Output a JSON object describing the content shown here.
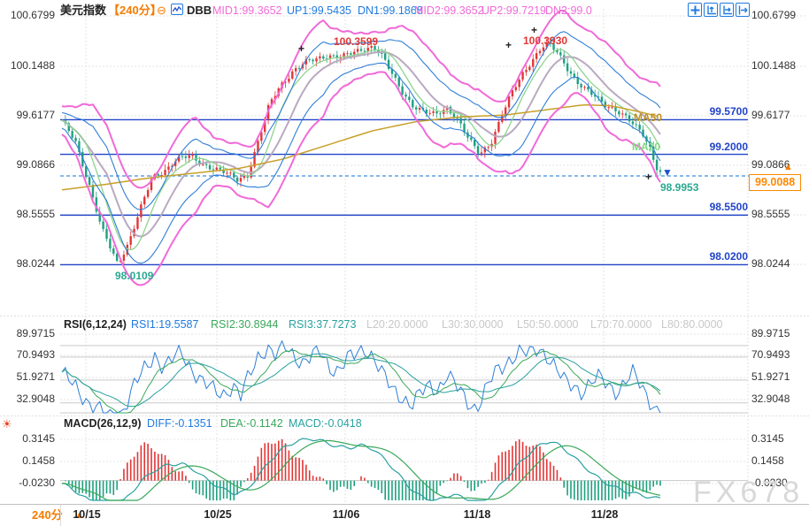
{
  "header": {
    "symbol": "美元指数",
    "period": "【240分】",
    "minus_icon": "⊖",
    "indicator": "DBB",
    "mid1": "MID1:99.3652",
    "up1": "UP1:99.5435",
    "dn1": "DN1:99.1868",
    "mid2": "MID2:99.3652",
    "up2": "UP2:99.7219",
    "dn2": "DN2:99.0"
  },
  "main_chart": {
    "y_axis": [
      "100.6799",
      "100.1488",
      "99.6177",
      "99.0866",
      "98.5555",
      "98.0244"
    ],
    "levels": [
      {
        "label": "99.5700",
        "value": 99.57
      },
      {
        "label": "99.2000",
        "value": 99.2
      },
      {
        "label": "98.5500",
        "value": 98.55
      },
      {
        "label": "98.0200",
        "value": 98.02
      }
    ],
    "current_price": "99.0088",
    "annotations": {
      "peak1": "100.3599",
      "peak2": "100.3930",
      "last": "98.9953",
      "low": "98.0109",
      "ma50": "MA50",
      "ma20": "MA20"
    },
    "markers": {
      "up_arrow": "▲",
      "down_arrow": "▼",
      "cross": "+"
    }
  },
  "rsi": {
    "name": "RSI(6,12,24)",
    "r1": "RSI1:19.5587",
    "r2": "RSI2:30.8944",
    "r3": "RSI3:37.7273",
    "l20": "L20:20.0000",
    "l30": "L30:30.0000",
    "l50": "L50:50.0000",
    "l70": "L70:70.0000",
    "l80": "L80:80.0000",
    "axis": [
      "89.9715",
      "70.9493",
      "51.9271",
      "32.9048"
    ]
  },
  "macd": {
    "name": "MACD(26,12,9)",
    "diff": "DIFF:-0.1351",
    "dea": "DEA:-0.1142",
    "macd": "MACD:-0.0418",
    "axis": [
      "0.3145",
      "0.1458",
      "-0.0230"
    ]
  },
  "time_axis": {
    "period": "240分",
    "arrow": "▲",
    "dates": [
      "10/15",
      "10/25",
      "11/06",
      "11/18",
      "11/28"
    ]
  },
  "watermark": "FX678",
  "sun_icon": "☀",
  "colors": {
    "accent_orange": "#f57c00",
    "band_pink": "#f06ad8",
    "inner_band_blue": "#2f7fd6",
    "level_blue": "#2244c8",
    "up_red": "#e23636",
    "down_green": "#1fa080",
    "rsi_blue": "#2f7fd6",
    "rsi_green": "#3aa85a",
    "rsi_teal": "#2aa0a0",
    "ma50_olive": "#c8a028",
    "ma20_green": "#8fd48f",
    "mid_gray": "#b9a9c0",
    "price_box_orange": "#ff8800",
    "watermark_gray": "#d8d8d8"
  },
  "chart_data": {
    "type": "candlestick",
    "symbol": "美元指数",
    "timeframe": "240分",
    "price_axis_ticks": [
      100.6799,
      100.1488,
      99.6177,
      99.0866,
      98.5555,
      98.0244
    ],
    "time_ticks": [
      "10/15",
      "10/25",
      "11/06",
      "11/18",
      "11/28"
    ],
    "horizontal_levels": [
      99.57,
      99.2,
      98.55,
      98.02
    ],
    "current_price": 99.0088,
    "high1": 100.3599,
    "high2": 100.393,
    "low1": 98.0109,
    "last_low": 98.9953,
    "bollinger": {
      "mid1": 99.3652,
      "up1": 99.5435,
      "dn1": 99.1868,
      "mid2": 99.3652,
      "up2": 99.7219,
      "dn2": 99.0
    },
    "price_path": [
      [
        70,
        99.55
      ],
      [
        85,
        99.35
      ],
      [
        100,
        98.9
      ],
      [
        115,
        98.4
      ],
      [
        133,
        98.03
      ],
      [
        145,
        98.25
      ],
      [
        160,
        98.65
      ],
      [
        172,
        98.95
      ],
      [
        185,
        99.02
      ],
      [
        200,
        99.15
      ],
      [
        215,
        99.18
      ],
      [
        228,
        99.1
      ],
      [
        242,
        99.05
      ],
      [
        255,
        99.0
      ],
      [
        268,
        98.93
      ],
      [
        280,
        98.98
      ],
      [
        292,
        99.35
      ],
      [
        305,
        99.75
      ],
      [
        318,
        99.95
      ],
      [
        332,
        100.1
      ],
      [
        345,
        100.18
      ],
      [
        358,
        100.22
      ],
      [
        372,
        100.26
      ],
      [
        385,
        100.24
      ],
      [
        398,
        100.28
      ],
      [
        412,
        100.33
      ],
      [
        422,
        100.36
      ],
      [
        432,
        100.25
      ],
      [
        443,
        100.05
      ],
      [
        455,
        99.86
      ],
      [
        467,
        99.72
      ],
      [
        480,
        99.65
      ],
      [
        492,
        99.62
      ],
      [
        505,
        99.7
      ],
      [
        517,
        99.58
      ],
      [
        530,
        99.35
      ],
      [
        542,
        99.2
      ],
      [
        555,
        99.33
      ],
      [
        566,
        99.6
      ],
      [
        578,
        99.85
      ],
      [
        590,
        100.05
      ],
      [
        602,
        100.22
      ],
      [
        612,
        100.35
      ],
      [
        620,
        100.38
      ],
      [
        630,
        100.28
      ],
      [
        641,
        100.12
      ],
      [
        652,
        99.98
      ],
      [
        663,
        99.88
      ],
      [
        674,
        99.8
      ],
      [
        685,
        99.72
      ],
      [
        696,
        99.68
      ],
      [
        707,
        99.6
      ],
      [
        717,
        99.5
      ],
      [
        726,
        99.42
      ],
      [
        734,
        99.28
      ],
      [
        741,
        99.08
      ],
      [
        746,
        99.01
      ]
    ],
    "ma50_path": [
      [
        70,
        98.82
      ],
      [
        120,
        98.88
      ],
      [
        170,
        98.95
      ],
      [
        220,
        99.0
      ],
      [
        270,
        99.05
      ],
      [
        320,
        99.15
      ],
      [
        370,
        99.3
      ],
      [
        420,
        99.45
      ],
      [
        470,
        99.55
      ],
      [
        520,
        99.6
      ],
      [
        570,
        99.62
      ],
      [
        620,
        99.68
      ],
      [
        660,
        99.73
      ],
      [
        690,
        99.72
      ],
      [
        720,
        99.66
      ],
      [
        746,
        99.6
      ]
    ],
    "rsi": {
      "params": [
        6,
        12,
        24
      ],
      "rsi1": 19.5587,
      "rsi2": 30.8944,
      "rsi3": 37.7273,
      "levels": [
        20,
        30,
        50,
        70,
        80
      ],
      "axis_ticks": [
        89.9715,
        70.9493,
        51.9271,
        32.9048
      ],
      "path": [
        [
          70,
          55
        ],
        [
          85,
          45
        ],
        [
          100,
          30
        ],
        [
          115,
          22
        ],
        [
          130,
          15
        ],
        [
          140,
          25
        ],
        [
          152,
          45
        ],
        [
          165,
          62
        ],
        [
          175,
          72
        ],
        [
          185,
          60
        ],
        [
          195,
          68
        ],
        [
          205,
          75
        ],
        [
          215,
          62
        ],
        [
          228,
          48
        ],
        [
          240,
          42
        ],
        [
          252,
          38
        ],
        [
          263,
          45
        ],
        [
          272,
          35
        ],
        [
          282,
          55
        ],
        [
          292,
          72
        ],
        [
          302,
          78
        ],
        [
          312,
          70
        ],
        [
          322,
          80
        ],
        [
          332,
          72
        ],
        [
          342,
          65
        ],
        [
          352,
          70
        ],
        [
          362,
          75
        ],
        [
          372,
          62
        ],
        [
          382,
          58
        ],
        [
          392,
          68
        ],
        [
          402,
          72
        ],
        [
          412,
          78
        ],
        [
          422,
          70
        ],
        [
          432,
          55
        ],
        [
          443,
          42
        ],
        [
          455,
          35
        ],
        [
          465,
          28
        ],
        [
          475,
          38
        ],
        [
          485,
          45
        ],
        [
          495,
          42
        ],
        [
          505,
          55
        ],
        [
          515,
          45
        ],
        [
          527,
          32
        ],
        [
          538,
          25
        ],
        [
          548,
          40
        ],
        [
          558,
          55
        ],
        [
          568,
          62
        ],
        [
          578,
          70
        ],
        [
          588,
          75
        ],
        [
          598,
          72
        ],
        [
          608,
          78
        ],
        [
          618,
          72
        ],
        [
          628,
          60
        ],
        [
          638,
          48
        ],
        [
          648,
          45
        ],
        [
          658,
          40
        ],
        [
          668,
          48
        ],
        [
          678,
          52
        ],
        [
          688,
          45
        ],
        [
          698,
          40
        ],
        [
          708,
          50
        ],
        [
          715,
          55
        ],
        [
          722,
          48
        ],
        [
          728,
          40
        ],
        [
          735,
          32
        ],
        [
          741,
          25
        ],
        [
          746,
          18
        ]
      ]
    },
    "macd": {
      "params": [
        26,
        12,
        9
      ],
      "diff": -0.1351,
      "dea": -0.1142,
      "macd": -0.0418,
      "axis_ticks": [
        0.3145,
        0.1458,
        -0.023
      ],
      "diff_path": [
        [
          70,
          -0.02
        ],
        [
          85,
          -0.08
        ],
        [
          100,
          -0.15
        ],
        [
          115,
          -0.2
        ],
        [
          130,
          -0.22
        ],
        [
          145,
          -0.12
        ],
        [
          160,
          0.0
        ],
        [
          175,
          0.08
        ],
        [
          190,
          0.12
        ],
        [
          205,
          0.13
        ],
        [
          220,
          0.08
        ],
        [
          235,
          0.0
        ],
        [
          250,
          -0.06
        ],
        [
          265,
          -0.1
        ],
        [
          278,
          -0.08
        ],
        [
          290,
          0.02
        ],
        [
          305,
          0.15
        ],
        [
          320,
          0.25
        ],
        [
          335,
          0.3
        ],
        [
          350,
          0.32
        ],
        [
          365,
          0.3
        ],
        [
          380,
          0.26
        ],
        [
          395,
          0.25
        ],
        [
          410,
          0.27
        ],
        [
          422,
          0.24
        ],
        [
          435,
          0.16
        ],
        [
          450,
          0.05
        ],
        [
          462,
          -0.05
        ],
        [
          475,
          -0.12
        ],
        [
          488,
          -0.16
        ],
        [
          500,
          -0.14
        ],
        [
          512,
          -0.1
        ],
        [
          525,
          -0.14
        ],
        [
          538,
          -0.18
        ],
        [
          550,
          -0.14
        ],
        [
          562,
          -0.06
        ],
        [
          575,
          0.04
        ],
        [
          588,
          0.14
        ],
        [
          600,
          0.22
        ],
        [
          612,
          0.28
        ],
        [
          622,
          0.3
        ],
        [
          632,
          0.27
        ],
        [
          645,
          0.2
        ],
        [
          658,
          0.12
        ],
        [
          670,
          0.05
        ],
        [
          682,
          -0.01
        ],
        [
          694,
          -0.05
        ],
        [
          706,
          -0.08
        ],
        [
          718,
          -0.1
        ],
        [
          730,
          -0.12
        ],
        [
          740,
          -0.135
        ],
        [
          746,
          -0.135
        ]
      ]
    }
  }
}
